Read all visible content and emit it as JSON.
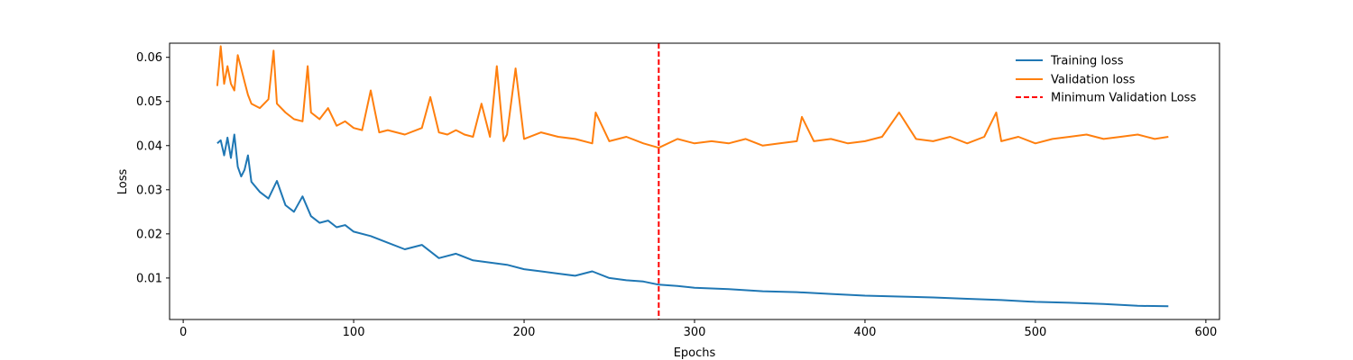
{
  "chart_data": {
    "type": "line",
    "title": "",
    "xlabel": "Epochs",
    "ylabel": "Loss",
    "xlim": [
      -8,
      608
    ],
    "ylim": [
      0.0006,
      0.0632
    ],
    "xticks": [
      0,
      100,
      200,
      300,
      400,
      500,
      600
    ],
    "yticks": [
      0.01,
      0.02,
      0.03,
      0.04,
      0.05,
      0.06
    ],
    "xtick_labels": [
      "0",
      "100",
      "200",
      "300",
      "400",
      "500",
      "600"
    ],
    "ytick_labels": [
      "0.01",
      "0.02",
      "0.03",
      "0.04",
      "0.05",
      "0.06"
    ],
    "grid": false,
    "legend_position": "top-right",
    "series": [
      {
        "name": "Training loss",
        "color": "#1f77b4",
        "x": [
          20,
          22,
          24,
          26,
          28,
          30,
          32,
          34,
          36,
          38,
          40,
          45,
          50,
          55,
          60,
          65,
          70,
          75,
          80,
          85,
          90,
          95,
          100,
          110,
          120,
          130,
          140,
          150,
          160,
          170,
          180,
          190,
          200,
          210,
          220,
          230,
          240,
          250,
          260,
          270,
          279,
          290,
          300,
          320,
          340,
          360,
          380,
          400,
          420,
          440,
          460,
          480,
          500,
          520,
          540,
          560,
          578
        ],
        "values": [
          0.0405,
          0.0412,
          0.0378,
          0.0418,
          0.0372,
          0.0425,
          0.0352,
          0.033,
          0.0345,
          0.0378,
          0.0318,
          0.0295,
          0.028,
          0.032,
          0.0265,
          0.025,
          0.0285,
          0.024,
          0.0225,
          0.023,
          0.0215,
          0.022,
          0.0205,
          0.0195,
          0.018,
          0.0165,
          0.0175,
          0.0145,
          0.0155,
          0.014,
          0.0135,
          0.013,
          0.012,
          0.0115,
          0.011,
          0.0105,
          0.0115,
          0.01,
          0.0095,
          0.0092,
          0.0085,
          0.0082,
          0.0078,
          0.0075,
          0.007,
          0.0068,
          0.0064,
          0.006,
          0.0058,
          0.0056,
          0.0053,
          0.005,
          0.0046,
          0.0044,
          0.0041,
          0.0037,
          0.0036
        ]
      },
      {
        "name": "Validation loss",
        "color": "#ff7f0e",
        "x": [
          20,
          22,
          24,
          26,
          28,
          30,
          32,
          34,
          36,
          38,
          40,
          45,
          50,
          53,
          55,
          60,
          65,
          70,
          73,
          75,
          80,
          85,
          90,
          95,
          100,
          105,
          110,
          115,
          120,
          130,
          140,
          145,
          150,
          155,
          160,
          165,
          170,
          175,
          180,
          184,
          188,
          190,
          195,
          200,
          210,
          220,
          230,
          240,
          242,
          250,
          260,
          270,
          279,
          290,
          300,
          310,
          320,
          330,
          340,
          350,
          360,
          363,
          370,
          380,
          390,
          400,
          410,
          420,
          430,
          440,
          450,
          460,
          470,
          477,
          480,
          490,
          500,
          510,
          520,
          530,
          540,
          550,
          560,
          570,
          578
        ],
        "values": [
          0.0535,
          0.0625,
          0.054,
          0.058,
          0.054,
          0.0525,
          0.0605,
          0.0575,
          0.0545,
          0.0515,
          0.0495,
          0.0485,
          0.0505,
          0.0615,
          0.0495,
          0.0475,
          0.046,
          0.0455,
          0.058,
          0.0475,
          0.046,
          0.0485,
          0.0445,
          0.0455,
          0.044,
          0.0435,
          0.0525,
          0.043,
          0.0435,
          0.0425,
          0.044,
          0.051,
          0.043,
          0.0425,
          0.0435,
          0.0425,
          0.042,
          0.0495,
          0.042,
          0.058,
          0.041,
          0.0425,
          0.0575,
          0.0415,
          0.043,
          0.042,
          0.0415,
          0.0405,
          0.0475,
          0.041,
          0.042,
          0.0405,
          0.0395,
          0.0415,
          0.0405,
          0.041,
          0.0405,
          0.0415,
          0.04,
          0.0405,
          0.041,
          0.0465,
          0.041,
          0.0415,
          0.0405,
          0.041,
          0.042,
          0.0475,
          0.0415,
          0.041,
          0.042,
          0.0405,
          0.042,
          0.0475,
          0.041,
          0.042,
          0.0405,
          0.0415,
          0.042,
          0.0425,
          0.0415,
          0.042,
          0.0425,
          0.0415,
          0.042
        ]
      }
    ],
    "vline": {
      "name": "Minimum Validation Loss",
      "x": 279,
      "color": "#ff0000",
      "style": "dashed"
    }
  }
}
